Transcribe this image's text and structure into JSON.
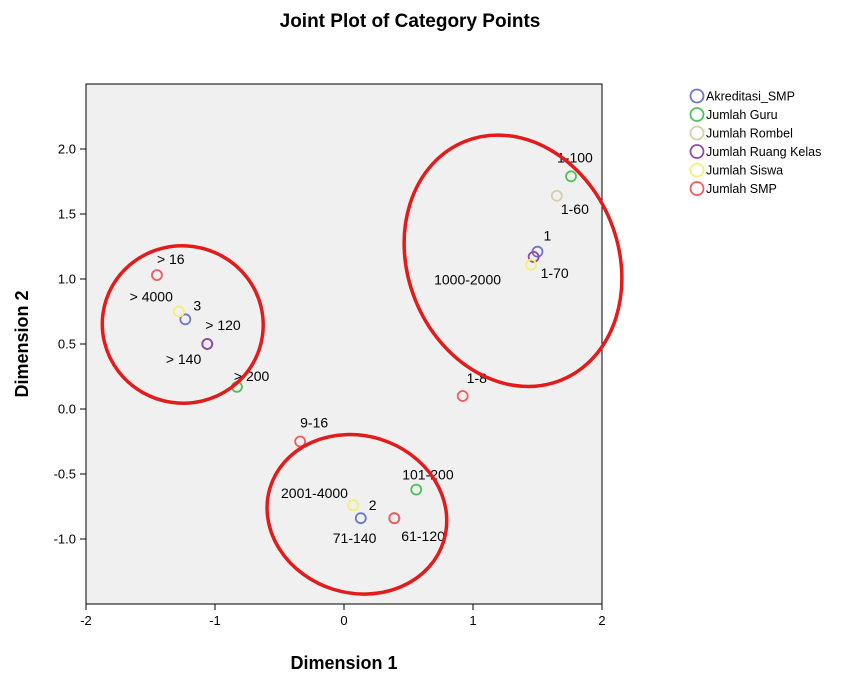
{
  "chart_data": {
    "type": "scatter",
    "title": "Joint Plot of Category Points",
    "xlabel": "Dimension 1",
    "ylabel": "Dimension 2",
    "xlim": [
      -2,
      2
    ],
    "ylim": [
      -1.5,
      2.5
    ],
    "xticks": [
      "-2",
      "-1",
      "0",
      "1",
      "2"
    ],
    "yticks": [
      "-1.0",
      "-0.5",
      "0.0",
      "0.5",
      "1.0",
      "1.5",
      "2.0"
    ],
    "ytick_values": [
      -1.0,
      -0.5,
      0.0,
      0.5,
      1.0,
      1.5,
      2.0
    ],
    "xtick_values": [
      -2,
      -1,
      0,
      1,
      2
    ],
    "grid": false,
    "legend_position": "right",
    "series": [
      {
        "name": "Akreditasi_SMP",
        "color": "#6b78c9",
        "points": [
          {
            "label": "1",
            "x": 1.5,
            "y": 1.21
          },
          {
            "label": "2",
            "x": 0.13,
            "y": -0.84
          },
          {
            "label": "3",
            "x": -1.23,
            "y": 0.69
          }
        ]
      },
      {
        "name": "Jumlah Guru",
        "color": "#4cc45a",
        "points": [
          {
            "label": "1-100",
            "x": 1.76,
            "y": 1.79
          },
          {
            "label": "101-200",
            "x": 0.56,
            "y": -0.62
          },
          {
            "label": "> 200",
            "x": -0.83,
            "y": 0.17
          }
        ]
      },
      {
        "name": "Jumlah Rombel",
        "color": "#d6d0a6",
        "points": [
          {
            "label": "1-60",
            "x": 1.65,
            "y": 1.64
          }
        ]
      },
      {
        "name": "Jumlah Ruang Kelas",
        "color": "#8e4aa8",
        "points": [
          {
            "label": "1-70",
            "x": 1.47,
            "y": 1.17
          },
          {
            "label": "61-120",
            "x": 0.39,
            "y": -0.84
          },
          {
            "label": "> 120",
            "x": -1.06,
            "y": 0.5
          },
          {
            "label": "> 140",
            "x": -1.06,
            "y": 0.5
          }
        ]
      },
      {
        "name": "Jumlah Siswa",
        "color": "#f2f07a",
        "points": [
          {
            "label": "1000-2000",
            "x": 1.45,
            "y": 1.11
          },
          {
            "label": "2001-4000",
            "x": 0.07,
            "y": -0.74
          },
          {
            "label": "> 4000",
            "x": -1.28,
            "y": 0.75
          }
        ]
      },
      {
        "name": "Jumlah SMP",
        "color": "#f25c5c",
        "points": [
          {
            "label": "1-8",
            "x": 0.92,
            "y": 0.1
          },
          {
            "label": "9-16",
            "x": -0.34,
            "y": -0.25
          },
          {
            "label": "> 16",
            "x": -1.45,
            "y": 1.03
          },
          {
            "label": "61-120",
            "x": 0.39,
            "y": -0.84
          }
        ]
      }
    ],
    "text_labels": [
      {
        "text": "1-100",
        "x": 1.76,
        "y": 1.79
      },
      {
        "text": "1-60",
        "x": 1.65,
        "y": 1.64
      },
      {
        "text": "1",
        "x": 1.5,
        "y": 1.21
      },
      {
        "text": "1000-2000",
        "x": 1.45,
        "y": 1.11
      },
      {
        "text": "1-70",
        "x": 1.47,
        "y": 1.17
      },
      {
        "text": "> 16",
        "x": -1.45,
        "y": 1.03
      },
      {
        "text": "> 4000",
        "x": -1.28,
        "y": 0.75
      },
      {
        "text": "3",
        "x": -1.23,
        "y": 0.69
      },
      {
        "text": "> 120",
        "x": -1.06,
        "y": 0.5
      },
      {
        "text": "> 140",
        "x": -1.06,
        "y": 0.5
      },
      {
        "text": "> 200",
        "x": -0.83,
        "y": 0.17
      },
      {
        "text": "1-8",
        "x": 0.92,
        "y": 0.1
      },
      {
        "text": "9-16",
        "x": -0.34,
        "y": -0.25
      },
      {
        "text": "101-200",
        "x": 0.56,
        "y": -0.62
      },
      {
        "text": "2001-4000",
        "x": 0.07,
        "y": -0.74
      },
      {
        "text": "2",
        "x": 0.13,
        "y": -0.84
      },
      {
        "text": "71-140",
        "x": 0.13,
        "y": -0.84
      },
      {
        "text": "61-120",
        "x": 0.39,
        "y": -0.84
      }
    ],
    "annotations": [
      {
        "shape": "ellipse",
        "color": "#e31b1b",
        "cx": 1.31,
        "cy": 1.14,
        "rx_data": 1.02,
        "ry_data": 0.9
      },
      {
        "shape": "ellipse",
        "color": "#e31b1b",
        "cx": -1.25,
        "cy": 0.65,
        "rx_data": 0.78,
        "ry_data": 0.55
      },
      {
        "shape": "ellipse",
        "color": "#e31b1b",
        "cx": 0.1,
        "cy": -0.81,
        "rx_data": 0.88,
        "ry_data": 0.55
      }
    ]
  }
}
